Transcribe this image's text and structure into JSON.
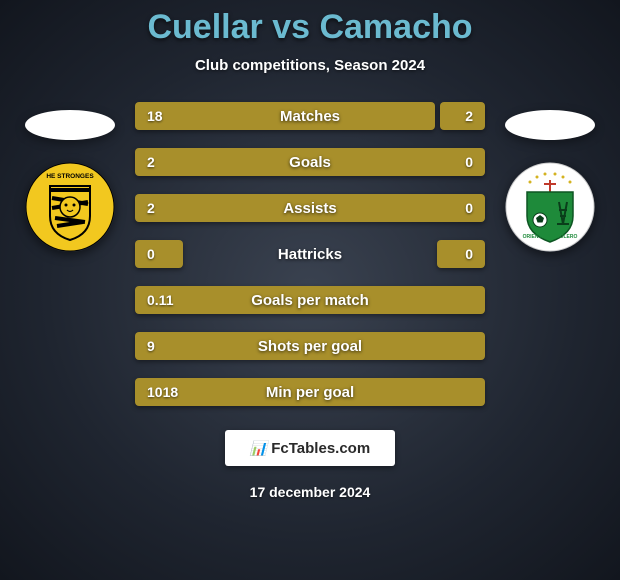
{
  "title": "Cuellar vs Camacho",
  "subtitle": "Club competitions, Season 2024",
  "date": "17 december 2024",
  "footer_brand": "FcTables.com",
  "colors": {
    "bar": "#a88f2b",
    "title": "#6bbad0",
    "text": "#ffffff"
  },
  "bar_width_total": 350,
  "stat_rows": [
    {
      "label": "Matches",
      "left_val": "18",
      "right_val": "2",
      "left_w": 300,
      "right_w": 45,
      "split": true
    },
    {
      "label": "Goals",
      "left_val": "2",
      "right_val": "0",
      "left_w": 350,
      "right_w": 0,
      "split": false
    },
    {
      "label": "Assists",
      "left_val": "2",
      "right_val": "0",
      "left_w": 350,
      "right_w": 0,
      "split": false
    },
    {
      "label": "Hattricks",
      "left_val": "0",
      "right_val": "0",
      "left_w": 48,
      "right_w": 48,
      "split": true
    },
    {
      "label": "Goals per match",
      "left_val": "0.11",
      "right_val": "",
      "left_w": 350,
      "right_w": 0,
      "split": false
    },
    {
      "label": "Shots per goal",
      "left_val": "9",
      "right_val": "",
      "left_w": 350,
      "right_w": 0,
      "split": false
    },
    {
      "label": "Min per goal",
      "left_val": "1018",
      "right_val": "",
      "left_w": 350,
      "right_w": 0,
      "split": false
    }
  ],
  "badges": {
    "left": {
      "name": "the-strongest-badge",
      "bg": "#f2c81f",
      "stripes": "#000000",
      "text": "HE STRONGES"
    },
    "right": {
      "name": "oriente-petrolero-badge",
      "bg": "#ffffff",
      "shield": "#1e8a3a",
      "text": "ORIENTE PETROLERO"
    }
  }
}
